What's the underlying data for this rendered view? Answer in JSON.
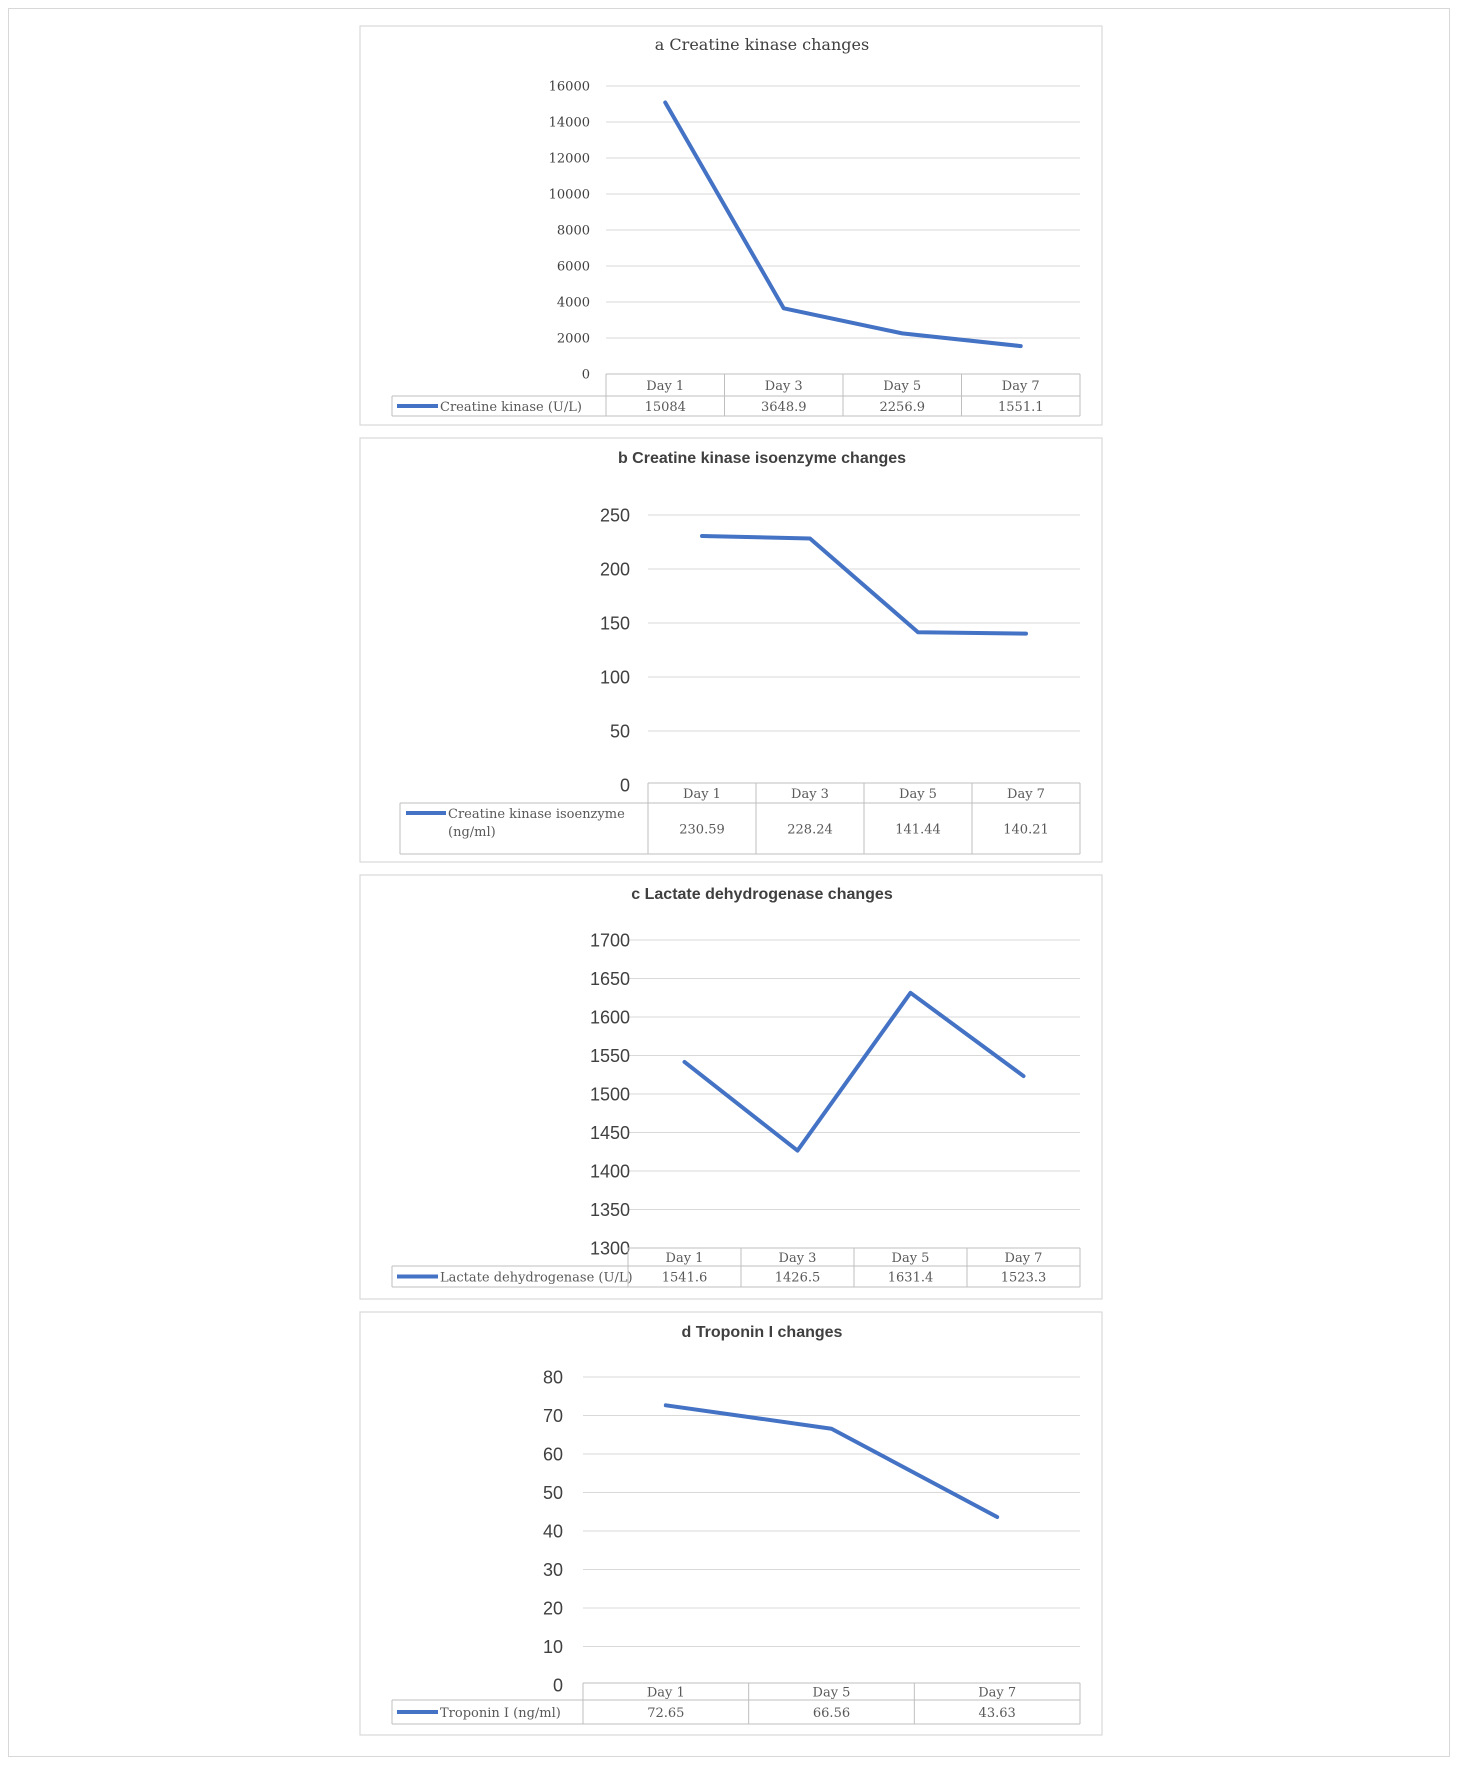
{
  "chart_data": [
    {
      "type": "line",
      "title": "a Creatine kinase changes",
      "categories": [
        "Day 1",
        "Day 3",
        "Day 5",
        "Day 7"
      ],
      "series": [
        {
          "name": "Creatine kinase (U/L)",
          "values": [
            15084,
            3648.9,
            2256.9,
            1551.1
          ]
        }
      ],
      "value_labels": [
        "15084",
        "3648.9",
        "2256.9",
        "1551.1"
      ],
      "ylim": [
        0,
        16000
      ],
      "yticks": [
        0,
        2000,
        4000,
        6000,
        8000,
        10000,
        12000,
        14000,
        16000
      ],
      "grid": true,
      "legend": "data-table",
      "color": "#4472c4"
    },
    {
      "type": "line",
      "title": "b Creatine kinase isoenzyme changes",
      "categories": [
        "Day 1",
        "Day 3",
        "Day 5",
        "Day 7"
      ],
      "series": [
        {
          "name": "Creatine kinase isoenzyme (ng/ml)",
          "values": [
            230.59,
            228.24,
            141.44,
            140.21
          ]
        }
      ],
      "legend_lines": [
        "Creatine kinase isoenzyme",
        "(ng/ml)"
      ],
      "value_labels": [
        "230.59",
        "228.24",
        "141.44",
        "140.21"
      ],
      "ylim": [
        0,
        250
      ],
      "yticks": [
        0,
        50,
        100,
        150,
        200,
        250
      ],
      "grid": true,
      "legend": "data-table",
      "color": "#4472c4"
    },
    {
      "type": "line",
      "title": "c Lactate dehydrogenase changes",
      "categories": [
        "Day 1",
        "Day 3",
        "Day 5",
        "Day 7"
      ],
      "series": [
        {
          "name": "Lactate dehydrogenase (U/L)",
          "values": [
            1541.6,
            1426.5,
            1631.4,
            1523.3
          ]
        }
      ],
      "value_labels": [
        "1541.6",
        "1426.5",
        "1631.4",
        "1523.3"
      ],
      "ylim": [
        1300,
        1700
      ],
      "yticks": [
        1300,
        1350,
        1400,
        1450,
        1500,
        1550,
        1600,
        1650,
        1700
      ],
      "grid": true,
      "legend": "data-table",
      "color": "#4472c4"
    },
    {
      "type": "line",
      "title": "d Troponin I changes",
      "categories": [
        "Day 1",
        "Day 5",
        "Day 7"
      ],
      "series": [
        {
          "name": "Troponin I (ng/ml)",
          "values": [
            72.65,
            66.56,
            43.63
          ]
        }
      ],
      "value_labels": [
        "72.65",
        "66.56",
        "43.63"
      ],
      "ylim": [
        0,
        80
      ],
      "yticks": [
        0,
        10,
        20,
        30,
        40,
        50,
        60,
        70,
        80
      ],
      "grid": true,
      "legend": "data-table",
      "color": "#4472c4"
    }
  ]
}
